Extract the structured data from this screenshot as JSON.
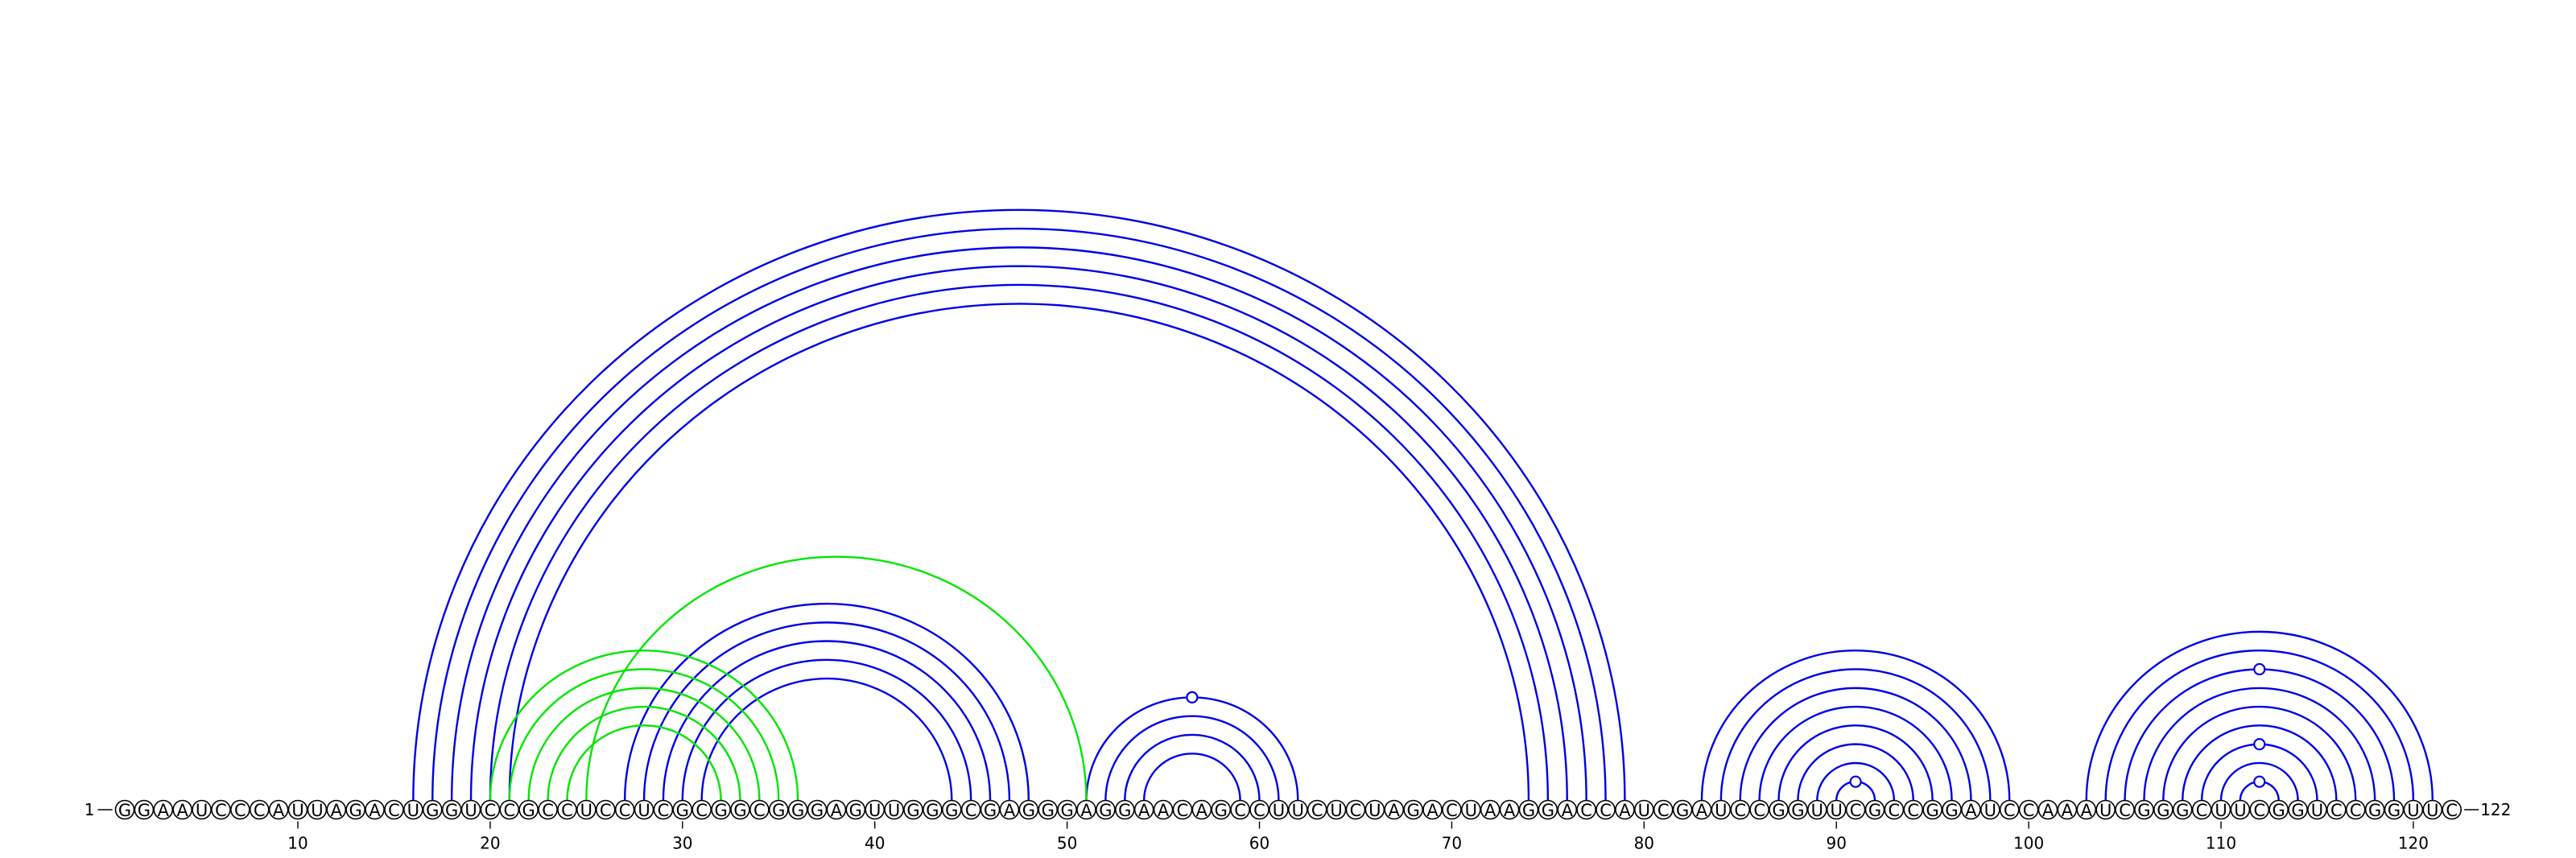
{
  "sequence": "GGAAUCCCAUUAGACUGGUCCGCCUCCUCGCGGCGGGAGUUGGGCGAGGGAGGAACAGCCUUCUCUAGACUAAGGACCAUCGAUCCGGUUCGCCGGAUCCAAAUCGGGCUUCGGUCCGGUUC",
  "start_label": "1",
  "end_label": "122",
  "tick_labels": [
    "10",
    "20",
    "30",
    "40",
    "50",
    "60",
    "70",
    "80",
    "90",
    "100",
    "110",
    "120"
  ],
  "colors": {
    "canonical_pair": "#0000e6",
    "pseudoknot_pair": "#00e600",
    "backbone": "#000000"
  },
  "base_pairs": [
    {
      "i": 16,
      "j": 79,
      "type": "canonical"
    },
    {
      "i": 17,
      "j": 78,
      "type": "canonical"
    },
    {
      "i": 18,
      "j": 77,
      "type": "canonical"
    },
    {
      "i": 19,
      "j": 76,
      "type": "canonical"
    },
    {
      "i": 20,
      "j": 75,
      "type": "canonical"
    },
    {
      "i": 21,
      "j": 74,
      "type": "canonical"
    },
    {
      "i": 27,
      "j": 48,
      "type": "canonical"
    },
    {
      "i": 28,
      "j": 47,
      "type": "canonical"
    },
    {
      "i": 29,
      "j": 46,
      "type": "canonical"
    },
    {
      "i": 30,
      "j": 45,
      "type": "canonical"
    },
    {
      "i": 31,
      "j": 44,
      "type": "canonical"
    },
    {
      "i": 51,
      "j": 62,
      "type": "canonical",
      "marker": true
    },
    {
      "i": 52,
      "j": 61,
      "type": "canonical"
    },
    {
      "i": 53,
      "j": 60,
      "type": "canonical"
    },
    {
      "i": 54,
      "j": 59,
      "type": "canonical"
    },
    {
      "i": 83,
      "j": 99,
      "type": "canonical"
    },
    {
      "i": 84,
      "j": 98,
      "type": "canonical"
    },
    {
      "i": 85,
      "j": 97,
      "type": "canonical"
    },
    {
      "i": 86,
      "j": 96,
      "type": "canonical"
    },
    {
      "i": 87,
      "j": 95,
      "type": "canonical"
    },
    {
      "i": 88,
      "j": 94,
      "type": "canonical"
    },
    {
      "i": 89,
      "j": 93,
      "type": "canonical"
    },
    {
      "i": 90,
      "j": 92,
      "type": "canonical",
      "marker": true
    },
    {
      "i": 103,
      "j": 121,
      "type": "canonical"
    },
    {
      "i": 104,
      "j": 120,
      "type": "canonical"
    },
    {
      "i": 105,
      "j": 119,
      "type": "canonical",
      "marker": true
    },
    {
      "i": 106,
      "j": 118,
      "type": "canonical"
    },
    {
      "i": 107,
      "j": 117,
      "type": "canonical"
    },
    {
      "i": 108,
      "j": 116,
      "type": "canonical"
    },
    {
      "i": 109,
      "j": 115,
      "type": "canonical",
      "marker": true
    },
    {
      "i": 110,
      "j": 114,
      "type": "canonical"
    },
    {
      "i": 111,
      "j": 113,
      "type": "canonical",
      "marker": true
    },
    {
      "i": 20,
      "j": 36,
      "type": "pseudoknot"
    },
    {
      "i": 21,
      "j": 35,
      "type": "pseudoknot"
    },
    {
      "i": 22,
      "j": 34,
      "type": "pseudoknot"
    },
    {
      "i": 23,
      "j": 33,
      "type": "pseudoknot"
    },
    {
      "i": 24,
      "j": 32,
      "type": "pseudoknot"
    },
    {
      "i": 25,
      "j": 51,
      "type": "pseudoknot"
    }
  ]
}
